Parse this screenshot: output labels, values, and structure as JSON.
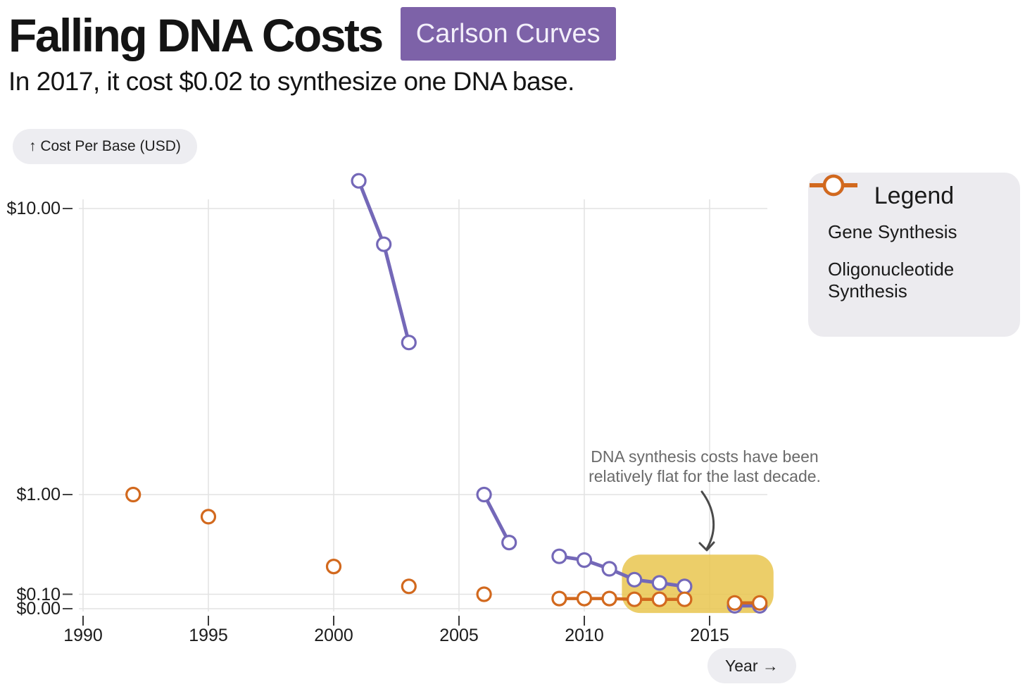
{
  "header": {
    "title": "Falling DNA Costs",
    "badge": "Carlson Curves",
    "subtitle": "In 2017, it cost $0.02 to synthesize one DNA base."
  },
  "axis_pills": {
    "y_label": "↑ Cost Per Base (USD)",
    "x_label": "Year →"
  },
  "legend": {
    "title": "Legend"
  },
  "annotation": {
    "line1": "DNA synthesis costs have been",
    "line2": "relatively flat for the last decade."
  },
  "colors": {
    "badge_purple": "#7d62a8",
    "gene_purple": "#7468b8",
    "oligo_orange": "#d2691e",
    "highlight_yellow": "#e9c64f",
    "gridline": "#e2e2e2",
    "annotation_gray": "#6a6a6a",
    "arrow_gray": "#4a4a4a"
  },
  "chart_data": {
    "type": "line",
    "title": "Falling DNA Costs (Carlson Curves)",
    "subtitle": "In 2017, it cost $0.02 to synthesize one DNA base.",
    "xlabel": "Year",
    "ylabel": "Cost Per Base (USD)",
    "grid": true,
    "legend_position": "top-right",
    "x_ticks": [
      1990,
      1995,
      2000,
      2005,
      2010,
      2015
    ],
    "y_ticks": [
      {
        "label": "$10.00",
        "value": 10
      },
      {
        "label": "$1.00",
        "value": 1
      },
      {
        "label": "$0.10",
        "value": 0.1
      },
      {
        "label": "$0.00",
        "value": 0
      }
    ],
    "x_range": [
      1989.8,
      2017.3
    ],
    "y_axis_note": "non-linear cost axis: $0, $0.10, $1.00, $10.00 tick anchors",
    "series": [
      {
        "name": "Gene Synthesis",
        "color": "#7468b8",
        "segments": [
          [
            [
              2001,
              12.5
            ],
            [
              2002,
              7.5
            ],
            [
              2003,
              3.4
            ]
          ],
          [
            [
              2006,
              1.0
            ],
            [
              2007,
              0.33
            ]
          ],
          [
            [
              2009,
              0.24
            ],
            [
              2010,
              0.22
            ],
            [
              2011,
              0.18
            ],
            [
              2012,
              0.14
            ],
            [
              2013,
              0.13
            ],
            [
              2014,
              0.12
            ]
          ],
          [
            [
              2016,
              0.02
            ],
            [
              2017,
              0.02
            ]
          ]
        ]
      },
      {
        "name": "Oligonucleotide Synthesis",
        "color": "#d2691e",
        "segments": [
          [
            [
              1992,
              1.0
            ]
          ],
          [
            [
              1995,
              0.6
            ]
          ],
          [
            [
              2000,
              0.19
            ]
          ],
          [
            [
              2003,
              0.12
            ]
          ],
          [
            [
              2006,
              0.1
            ]
          ],
          [
            [
              2009,
              0.07
            ],
            [
              2010,
              0.07
            ],
            [
              2011,
              0.07
            ],
            [
              2012,
              0.065
            ],
            [
              2013,
              0.065
            ],
            [
              2014,
              0.065
            ]
          ],
          [
            [
              2016,
              0.04
            ],
            [
              2017,
              0.04
            ]
          ]
        ]
      }
    ],
    "highlight": {
      "year_start": 2011.5,
      "year_end": 2017.55,
      "value_top": 0.25,
      "value_bottom": -0.03,
      "note": "DNA synthesis costs have been relatively flat for the last decade."
    }
  }
}
